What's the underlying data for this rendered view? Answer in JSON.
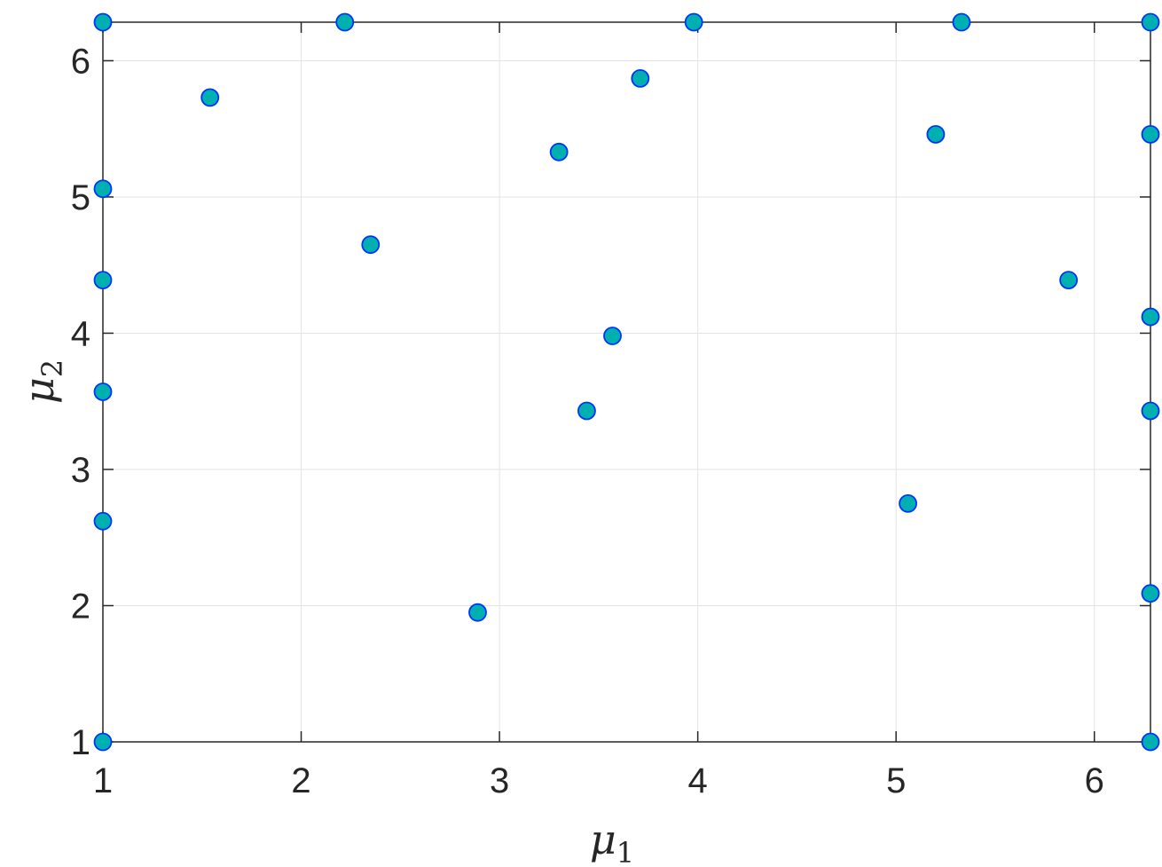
{
  "chart_data": {
    "type": "scatter",
    "xlabel": "μ",
    "xlabel_subscript": "1",
    "ylabel": "μ",
    "ylabel_subscript": "2",
    "xlim": [
      1,
      6.283
    ],
    "ylim": [
      1,
      6.283
    ],
    "xticks": [
      1,
      2,
      3,
      4,
      5,
      6
    ],
    "yticks": [
      1,
      2,
      3,
      4,
      5,
      6
    ],
    "grid": true,
    "marker_fill": "#00b0b0",
    "marker_edge": "#0033ff",
    "points": [
      {
        "x": 1,
        "y": 6.283
      },
      {
        "x": 2.22,
        "y": 6.283
      },
      {
        "x": 3.98,
        "y": 6.283
      },
      {
        "x": 5.33,
        "y": 6.283
      },
      {
        "x": 6.283,
        "y": 6.283
      },
      {
        "x": 1.54,
        "y": 5.73
      },
      {
        "x": 3.71,
        "y": 5.87
      },
      {
        "x": 3.3,
        "y": 5.33
      },
      {
        "x": 5.2,
        "y": 5.46
      },
      {
        "x": 6.283,
        "y": 5.46
      },
      {
        "x": 1,
        "y": 5.06
      },
      {
        "x": 2.35,
        "y": 4.65
      },
      {
        "x": 1,
        "y": 4.39
      },
      {
        "x": 5.87,
        "y": 4.39
      },
      {
        "x": 6.283,
        "y": 4.12
      },
      {
        "x": 3.57,
        "y": 3.98
      },
      {
        "x": 1,
        "y": 3.57
      },
      {
        "x": 3.44,
        "y": 3.43
      },
      {
        "x": 6.283,
        "y": 3.43
      },
      {
        "x": 5.06,
        "y": 2.75
      },
      {
        "x": 1,
        "y": 2.62
      },
      {
        "x": 6.283,
        "y": 2.09
      },
      {
        "x": 2.89,
        "y": 1.95
      },
      {
        "x": 1,
        "y": 1
      },
      {
        "x": 6.283,
        "y": 1
      }
    ]
  }
}
